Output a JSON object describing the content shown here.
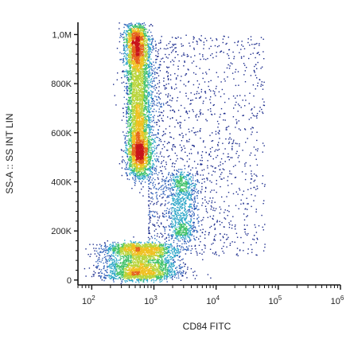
{
  "chart_data": {
    "type": "scatter",
    "style": "density-colored flow cytometry dot plot",
    "xlabel": "CD84 FITC",
    "ylabel": "SS-A :: SS INT LIN",
    "x_scale": "log",
    "y_scale": "linear",
    "xlim": [
      60,
      1000000
    ],
    "ylim": [
      -20000,
      1050000
    ],
    "x_ticks": [
      {
        "value": 100,
        "base": "10",
        "exp": "2"
      },
      {
        "value": 1000,
        "base": "10",
        "exp": "3"
      },
      {
        "value": 10000,
        "base": "10",
        "exp": "4"
      },
      {
        "value": 100000,
        "base": "10",
        "exp": "5"
      },
      {
        "value": 1000000,
        "base": "10",
        "exp": "6"
      }
    ],
    "y_ticks": [
      {
        "value": 0,
        "label": "0"
      },
      {
        "value": 200000,
        "label": "200K"
      },
      {
        "value": 400000,
        "label": "400K"
      },
      {
        "value": 600000,
        "label": "600K"
      },
      {
        "value": 800000,
        "label": "800K"
      },
      {
        "value": 1000000,
        "label": "1,0M"
      }
    ],
    "grid": false,
    "density_colors": [
      "#1a2a8c",
      "#2f5fb8",
      "#2fa7c8",
      "#43c26a",
      "#b8d43a",
      "#f0c020",
      "#e5651e",
      "#c8141c"
    ],
    "populations": [
      {
        "id": "high-ss-cd84-low",
        "x_center": 550,
        "y_center": 700000,
        "x_spread_decades": 0.1,
        "y_range": [
          480000,
          1000000
        ],
        "count": 5200
      },
      {
        "id": "low-ss-cluster",
        "x_center": 600,
        "y_center": 60000,
        "x_spread_decades": 0.3,
        "y_range": [
          15000,
          140000
        ],
        "count": 3000
      },
      {
        "id": "intermediate-ss-cd84-mid",
        "x_center": 2800,
        "y_center": 290000,
        "x_spread_decades": 0.12,
        "y_range": [
          190000,
          420000
        ],
        "count": 900
      },
      {
        "id": "diffuse-scatter",
        "x_range": [
          800,
          60000
        ],
        "y_range": [
          100000,
          1000000
        ],
        "count": 1600
      }
    ]
  }
}
